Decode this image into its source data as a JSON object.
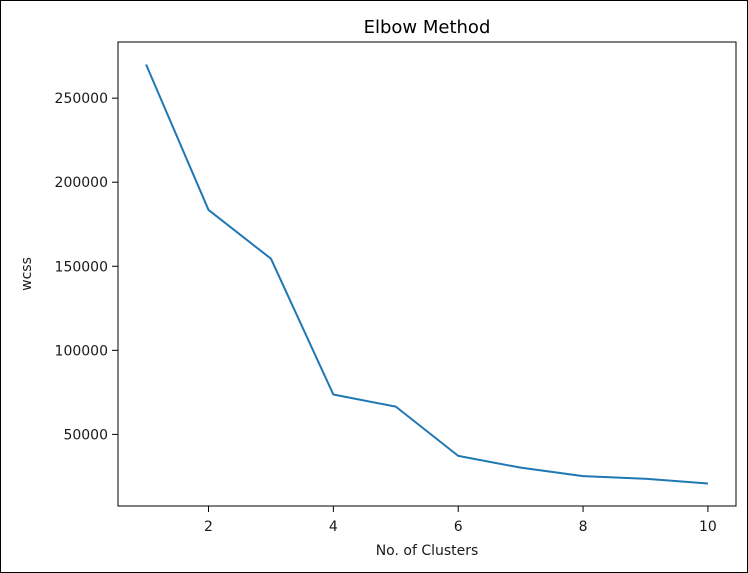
{
  "chart_data": {
    "type": "line",
    "title": "Elbow Method",
    "xlabel": "No. of Clusters",
    "ylabel": "wcss",
    "x": [
      1,
      2,
      3,
      4,
      5,
      6,
      7,
      8,
      9,
      10
    ],
    "series": [
      {
        "values": [
          270000,
          183500,
          154500,
          73700,
          66500,
          37200,
          30200,
          25200,
          23600,
          20800
        ],
        "color": "#1f77b4"
      }
    ],
    "xticks": [
      2,
      4,
      6,
      8,
      10
    ],
    "yticks": [
      50000,
      100000,
      150000,
      200000,
      250000
    ],
    "xlim": [
      0.55,
      10.45
    ],
    "ylim": [
      7400,
      283400
    ],
    "grid": false,
    "legend": false
  }
}
